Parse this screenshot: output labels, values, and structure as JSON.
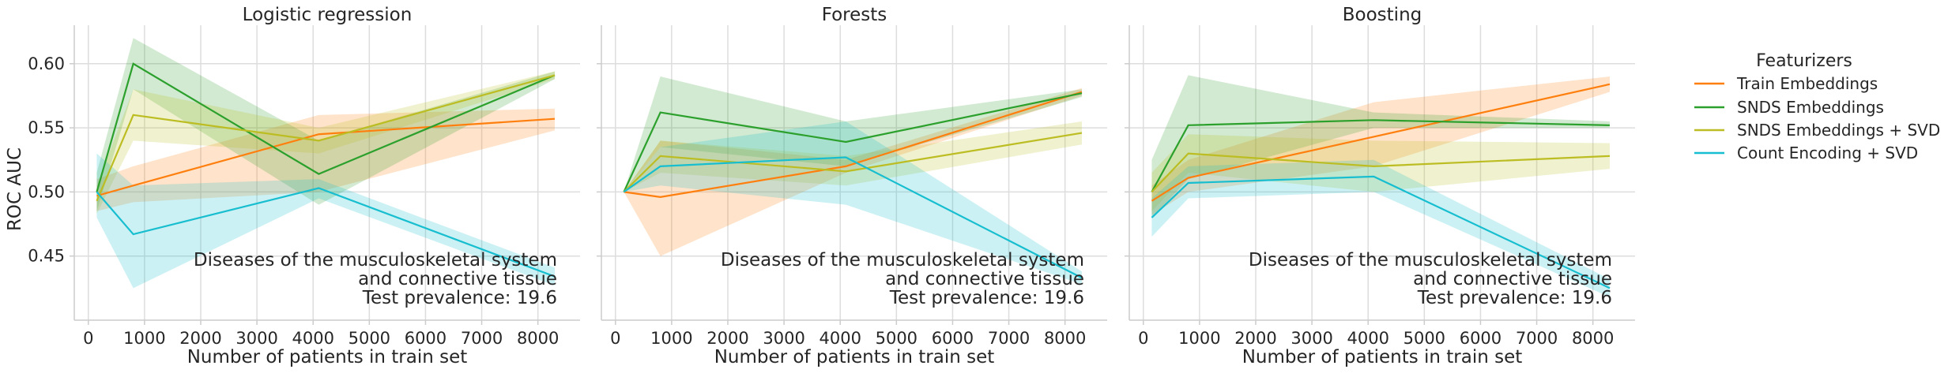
{
  "chart_data": {
    "type": "line",
    "ylabel": "ROC AUC",
    "xlabel": "Number of patients in train set",
    "xlim": [
      -250,
      8750
    ],
    "ylim": [
      0.4,
      0.63
    ],
    "x_ticks": [
      "0",
      "1000",
      "2000",
      "3000",
      "4000",
      "5000",
      "6000",
      "7000",
      "8000"
    ],
    "y_ticks": [
      "0.45",
      "0.50",
      "0.55",
      "0.60"
    ],
    "grid": true,
    "legend": {
      "title": "Featurizers",
      "placement": "right",
      "entries": [
        {
          "name": "Train Embeddings",
          "color": "#ff7f0e"
        },
        {
          "name": "SNDS Embeddings",
          "color": "#2ca02c"
        },
        {
          "name": "SNDS Embeddings + SVD",
          "color": "#bcbd22"
        },
        {
          "name": "Count Encoding + SVD",
          "color": "#17becf"
        }
      ]
    },
    "annotation": {
      "line1": "Diseases of the musculoskeletal system",
      "line2": "and connective tissue",
      "line3": "Test prevalence: 19.6"
    },
    "panels": [
      {
        "title": "Logistic regression",
        "series": [
          {
            "name": "Train Embeddings",
            "x": [
              150,
              800,
              4100,
              8300
            ],
            "y": [
              0.497,
              0.505,
              0.545,
              0.557
            ],
            "low": [
              0.485,
              0.492,
              0.5,
              0.548
            ],
            "high": [
              0.51,
              0.52,
              0.56,
              0.565
            ]
          },
          {
            "name": "SNDS Embeddings",
            "x": [
              150,
              800,
              4100,
              8300
            ],
            "y": [
              0.5,
              0.6,
              0.514,
              0.591
            ],
            "low": [
              0.485,
              0.58,
              0.49,
              0.588
            ],
            "high": [
              0.515,
              0.62,
              0.54,
              0.594
            ]
          },
          {
            "name": "SNDS Embeddings + SVD",
            "x": [
              150,
              800,
              4100,
              8300
            ],
            "y": [
              0.493,
              0.56,
              0.54,
              0.591
            ],
            "low": [
              0.483,
              0.54,
              0.53,
              0.588
            ],
            "high": [
              0.505,
              0.58,
              0.55,
              0.594
            ]
          },
          {
            "name": "Count Encoding + SVD",
            "x": [
              150,
              800,
              4100,
              8300
            ],
            "y": [
              0.5,
              0.467,
              0.503,
              0.434
            ],
            "low": [
              0.48,
              0.425,
              0.495,
              0.427
            ],
            "high": [
              0.53,
              0.505,
              0.51,
              0.441
            ]
          }
        ]
      },
      {
        "title": "Forests",
        "series": [
          {
            "name": "Train Embeddings",
            "x": [
              150,
              800,
              4100,
              8300
            ],
            "y": [
              0.5,
              0.496,
              0.52,
              0.578
            ],
            "low": [
              0.5,
              0.45,
              0.515,
              0.575
            ],
            "high": [
              0.5,
              0.54,
              0.525,
              0.581
            ]
          },
          {
            "name": "SNDS Embeddings",
            "x": [
              150,
              800,
              4100,
              8300
            ],
            "y": [
              0.5,
              0.562,
              0.539,
              0.577
            ],
            "low": [
              0.5,
              0.535,
              0.52,
              0.574
            ],
            "high": [
              0.5,
              0.59,
              0.555,
              0.58
            ]
          },
          {
            "name": "SNDS Embeddings + SVD",
            "x": [
              150,
              800,
              4100,
              8300
            ],
            "y": [
              0.5,
              0.528,
              0.516,
              0.546
            ],
            "low": [
              0.5,
              0.515,
              0.505,
              0.537
            ],
            "high": [
              0.5,
              0.54,
              0.528,
              0.555
            ]
          },
          {
            "name": "Count Encoding + SVD",
            "x": [
              150,
              800,
              4100,
              8300
            ],
            "y": [
              0.5,
              0.52,
              0.527,
              0.433
            ],
            "low": [
              0.5,
              0.505,
              0.49,
              0.428
            ],
            "high": [
              0.5,
              0.535,
              0.555,
              0.438
            ]
          }
        ]
      },
      {
        "title": "Boosting",
        "series": [
          {
            "name": "Train Embeddings",
            "x": [
              150,
              800,
              4100,
              8300
            ],
            "y": [
              0.493,
              0.511,
              0.543,
              0.584
            ],
            "low": [
              0.482,
              0.5,
              0.52,
              0.578
            ],
            "high": [
              0.505,
              0.525,
              0.57,
              0.59
            ]
          },
          {
            "name": "SNDS Embeddings",
            "x": [
              150,
              800,
              4100,
              8300
            ],
            "y": [
              0.5,
              0.552,
              0.556,
              0.552
            ],
            "low": [
              0.48,
              0.51,
              0.55,
              0.55
            ],
            "high": [
              0.525,
              0.591,
              0.562,
              0.555
            ]
          },
          {
            "name": "SNDS Embeddings + SVD",
            "x": [
              150,
              800,
              4100,
              8300
            ],
            "y": [
              0.5,
              0.53,
              0.52,
              0.528
            ],
            "low": [
              0.485,
              0.515,
              0.5,
              0.518
            ],
            "high": [
              0.515,
              0.545,
              0.54,
              0.538
            ]
          },
          {
            "name": "Count Encoding + SVD",
            "x": [
              150,
              800,
              4100,
              8300
            ],
            "y": [
              0.48,
              0.507,
              0.512,
              0.425
            ],
            "low": [
              0.465,
              0.495,
              0.5,
              0.418
            ],
            "high": [
              0.495,
              0.52,
              0.525,
              0.432
            ]
          }
        ]
      }
    ]
  }
}
